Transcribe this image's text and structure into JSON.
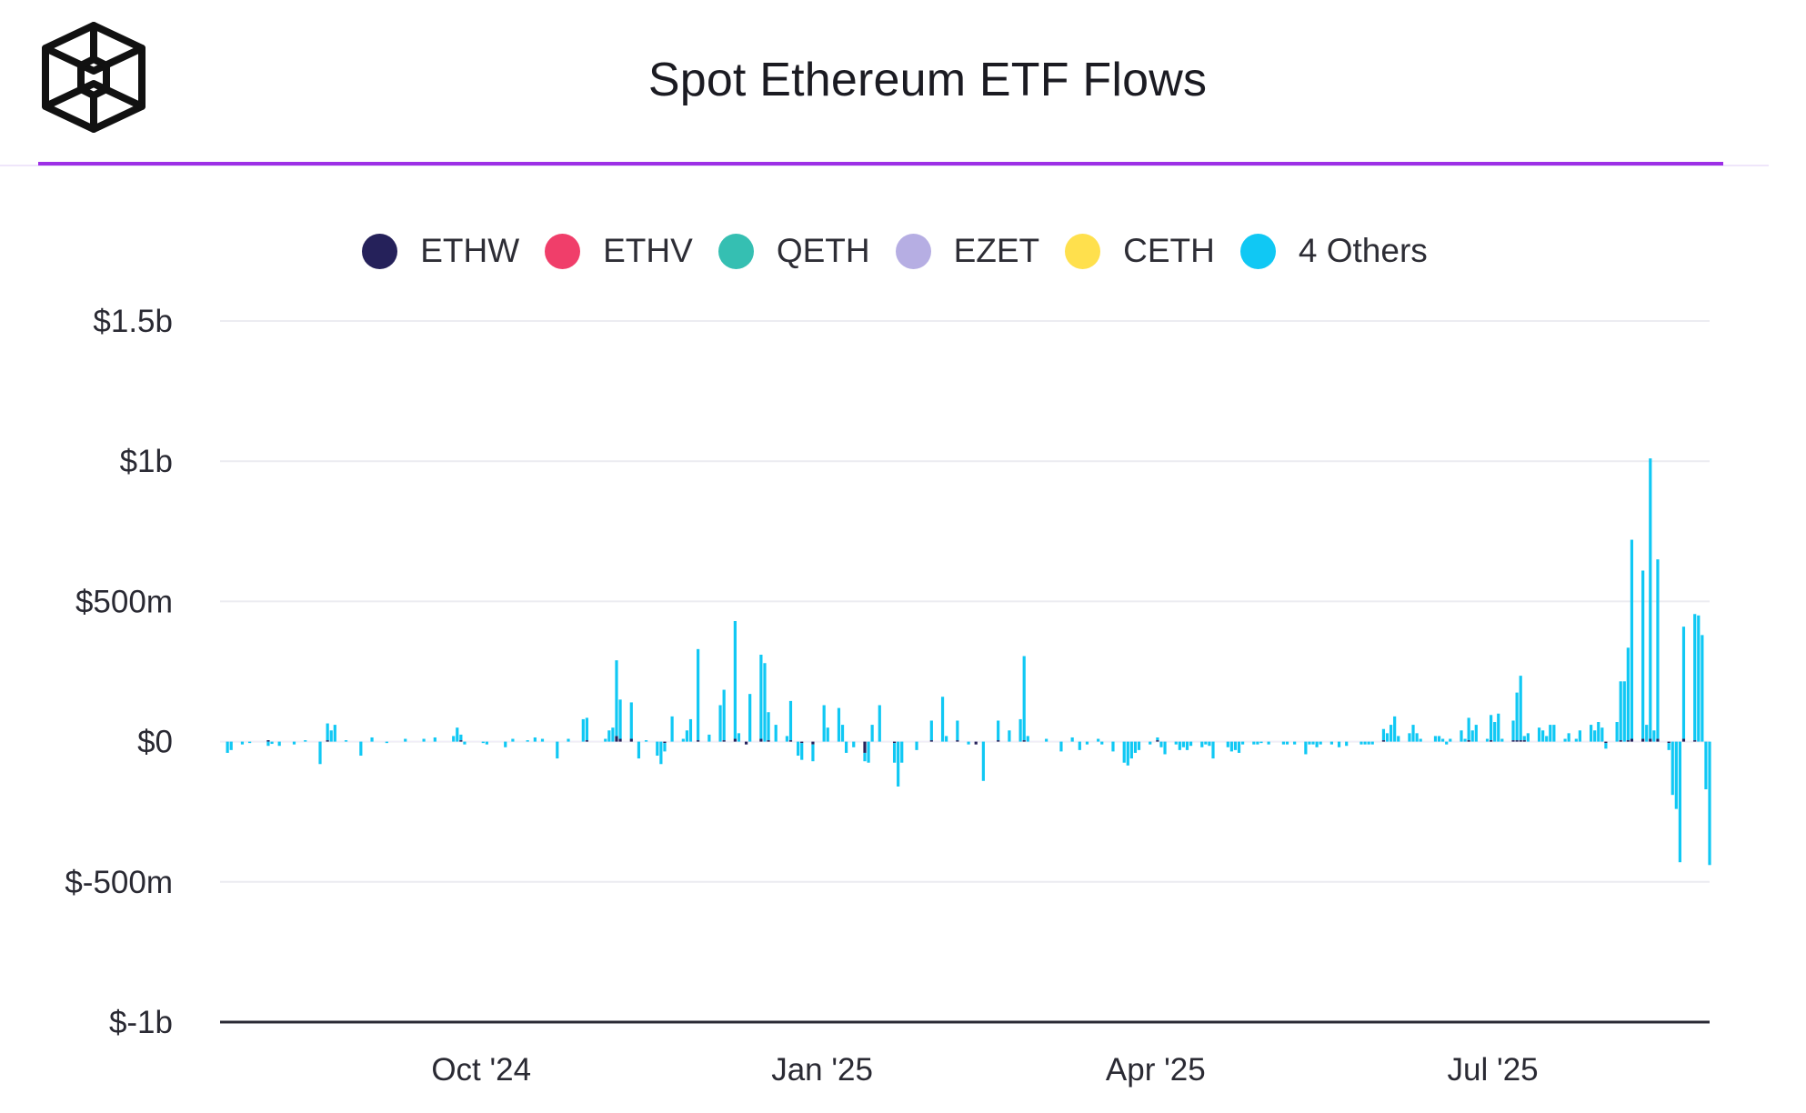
{
  "title": "Spot Ethereum ETF Flows",
  "colors": {
    "accent_rule": "#9d2fe6",
    "grid": "#ececf1",
    "axis": "#2b2b35"
  },
  "logo_icon": "cube-logo-icon",
  "chart_data": {
    "type": "bar",
    "stacked": true,
    "title": "Spot Ethereum ETF Flows",
    "xlabel": "",
    "ylabel": "",
    "ylim": [
      -1000,
      1500
    ],
    "y_unit": "millions USD",
    "y_ticks": [
      {
        "value": 1500,
        "label": "$1.5b"
      },
      {
        "value": 1000,
        "label": "$1b"
      },
      {
        "value": 500,
        "label": "$500m"
      },
      {
        "value": 0,
        "label": "$0"
      },
      {
        "value": -500,
        "label": "$-500m"
      },
      {
        "value": -1000,
        "label": "$-1b"
      }
    ],
    "x_range": [
      "2024-07-23",
      "2025-08-29"
    ],
    "x_ticks": [
      {
        "date": "2024-10-01",
        "label": "Oct '24"
      },
      {
        "date": "2025-01-01",
        "label": "Jan '25"
      },
      {
        "date": "2025-04-01",
        "label": "Apr '25"
      },
      {
        "date": "2025-07-01",
        "label": "Jul '25"
      }
    ],
    "grid": true,
    "legend_position": "top-center",
    "series": [
      {
        "name": "ETHW",
        "color": "#25215a"
      },
      {
        "name": "ETHV",
        "color": "#f03e6a"
      },
      {
        "name": "QETH",
        "color": "#35bfb2"
      },
      {
        "name": "EZET",
        "color": "#b6aee3"
      },
      {
        "name": "CETH",
        "color": "#ffe04d"
      },
      {
        "name": "4 Others",
        "color": "#10c8f4"
      }
    ],
    "points": [
      {
        "date": "2024-07-25",
        "ethw": 0,
        "others": -40
      },
      {
        "date": "2024-07-26",
        "ethw": 0,
        "others": -30
      },
      {
        "date": "2024-07-29",
        "ethw": 0,
        "others": -10
      },
      {
        "date": "2024-07-31",
        "ethw": 0,
        "others": -5
      },
      {
        "date": "2024-08-05",
        "ethw": 5,
        "others": -15
      },
      {
        "date": "2024-08-06",
        "ethw": 0,
        "others": -8
      },
      {
        "date": "2024-08-08",
        "ethw": 0,
        "others": -15
      },
      {
        "date": "2024-08-12",
        "ethw": 0,
        "others": -10
      },
      {
        "date": "2024-08-15",
        "ethw": 0,
        "others": 5
      },
      {
        "date": "2024-08-19",
        "ethw": 0,
        "others": -80
      },
      {
        "date": "2024-08-21",
        "ethw": 5,
        "others": 60
      },
      {
        "date": "2024-08-22",
        "ethw": 0,
        "others": 40
      },
      {
        "date": "2024-08-23",
        "ethw": 0,
        "others": 60
      },
      {
        "date": "2024-08-26",
        "ethw": 0,
        "others": 5
      },
      {
        "date": "2024-08-30",
        "ethw": 0,
        "others": -50
      },
      {
        "date": "2024-09-02",
        "ethw": 0,
        "others": 15
      },
      {
        "date": "2024-09-06",
        "ethw": 0,
        "others": -5
      },
      {
        "date": "2024-09-11",
        "ethw": 0,
        "others": 10
      },
      {
        "date": "2024-09-16",
        "ethw": 0,
        "others": 10
      },
      {
        "date": "2024-09-19",
        "ethw": 0,
        "others": 15
      },
      {
        "date": "2024-09-24",
        "ethw": 0,
        "others": 20
      },
      {
        "date": "2024-09-25",
        "ethw": 0,
        "others": 50
      },
      {
        "date": "2024-09-26",
        "ethw": 5,
        "others": 20
      },
      {
        "date": "2024-09-27",
        "ethw": 0,
        "others": -10
      },
      {
        "date": "2024-10-02",
        "ethw": 0,
        "others": -5
      },
      {
        "date": "2024-10-03",
        "ethw": 0,
        "others": -10
      },
      {
        "date": "2024-10-08",
        "ethw": 0,
        "others": -20
      },
      {
        "date": "2024-10-10",
        "ethw": 0,
        "others": 10
      },
      {
        "date": "2024-10-14",
        "ethw": 0,
        "others": 5
      },
      {
        "date": "2024-10-16",
        "ethw": 0,
        "others": 15
      },
      {
        "date": "2024-10-18",
        "ethw": 0,
        "others": 10
      },
      {
        "date": "2024-10-22",
        "ethw": 0,
        "others": -60
      },
      {
        "date": "2024-10-25",
        "ethw": 0,
        "others": 10
      },
      {
        "date": "2024-10-29",
        "ethw": 0,
        "others": 80
      },
      {
        "date": "2024-10-30",
        "ethw": 5,
        "others": 80
      },
      {
        "date": "2024-11-04",
        "ethw": 0,
        "others": 10
      },
      {
        "date": "2024-11-05",
        "ethw": 0,
        "others": 40
      },
      {
        "date": "2024-11-06",
        "ethw": 0,
        "others": 50
      },
      {
        "date": "2024-11-07",
        "ethw": 20,
        "others": 270
      },
      {
        "date": "2024-11-08",
        "ethw": 10,
        "others": 140
      },
      {
        "date": "2024-11-11",
        "ethw": 10,
        "others": 130
      },
      {
        "date": "2024-11-13",
        "ethw": 0,
        "others": -60
      },
      {
        "date": "2024-11-15",
        "ethw": 0,
        "others": 5
      },
      {
        "date": "2024-11-18",
        "ethw": 0,
        "others": -50
      },
      {
        "date": "2024-11-19",
        "ethw": 0,
        "others": -80
      },
      {
        "date": "2024-11-20",
        "ethw": -5,
        "others": -30
      },
      {
        "date": "2024-11-22",
        "ethw": 0,
        "others": 90
      },
      {
        "date": "2024-11-25",
        "ethw": 0,
        "others": 10
      },
      {
        "date": "2024-11-26",
        "ethw": 0,
        "others": 40
      },
      {
        "date": "2024-11-27",
        "ethw": 0,
        "others": 80
      },
      {
        "date": "2024-11-29",
        "ethw": 5,
        "others": 325
      },
      {
        "date": "2024-12-02",
        "ethw": 0,
        "others": 25
      },
      {
        "date": "2024-12-05",
        "ethw": 0,
        "others": 130
      },
      {
        "date": "2024-12-06",
        "ethw": 5,
        "others": 180
      },
      {
        "date": "2024-12-09",
        "ethw": 10,
        "others": 420
      },
      {
        "date": "2024-12-10",
        "ethw": 0,
        "others": 30
      },
      {
        "date": "2024-12-12",
        "ethw": -10,
        "others": 0
      },
      {
        "date": "2024-12-13",
        "ethw": 0,
        "others": 170
      },
      {
        "date": "2024-12-16",
        "ethw": 10,
        "others": 300
      },
      {
        "date": "2024-12-17",
        "ethw": 0,
        "others": 280
      },
      {
        "date": "2024-12-18",
        "ethw": 5,
        "others": 100
      },
      {
        "date": "2024-12-20",
        "ethw": 0,
        "others": 60
      },
      {
        "date": "2024-12-23",
        "ethw": 0,
        "others": 20
      },
      {
        "date": "2024-12-24",
        "ethw": 5,
        "others": 140
      },
      {
        "date": "2024-12-26",
        "ethw": 0,
        "others": -50
      },
      {
        "date": "2024-12-27",
        "ethw": -5,
        "others": -60
      },
      {
        "date": "2024-12-30",
        "ethw": -10,
        "others": -60
      },
      {
        "date": "2025-01-02",
        "ethw": 0,
        "others": 130
      },
      {
        "date": "2025-01-03",
        "ethw": 0,
        "others": 50
      },
      {
        "date": "2025-01-06",
        "ethw": 0,
        "others": 120
      },
      {
        "date": "2025-01-07",
        "ethw": 0,
        "others": 60
      },
      {
        "date": "2025-01-08",
        "ethw": 0,
        "others": -40
      },
      {
        "date": "2025-01-10",
        "ethw": 0,
        "others": -20
      },
      {
        "date": "2025-01-13",
        "ethw": -40,
        "others": -30
      },
      {
        "date": "2025-01-14",
        "ethw": 0,
        "others": -75
      },
      {
        "date": "2025-01-15",
        "ethw": 0,
        "others": 60
      },
      {
        "date": "2025-01-17",
        "ethw": 0,
        "others": 130
      },
      {
        "date": "2025-01-21",
        "ethw": -5,
        "others": -70
      },
      {
        "date": "2025-01-22",
        "ethw": 0,
        "others": -160
      },
      {
        "date": "2025-01-23",
        "ethw": 0,
        "others": -75
      },
      {
        "date": "2025-01-27",
        "ethw": 0,
        "others": -30
      },
      {
        "date": "2025-01-31",
        "ethw": 5,
        "others": 70
      },
      {
        "date": "2025-02-03",
        "ethw": 0,
        "others": 160
      },
      {
        "date": "2025-02-04",
        "ethw": 0,
        "others": 20
      },
      {
        "date": "2025-02-07",
        "ethw": 5,
        "others": 70
      },
      {
        "date": "2025-02-10",
        "ethw": 0,
        "others": -10
      },
      {
        "date": "2025-02-12",
        "ethw": -10,
        "others": 0
      },
      {
        "date": "2025-02-14",
        "ethw": 0,
        "others": -140
      },
      {
        "date": "2025-02-18",
        "ethw": 5,
        "others": 70
      },
      {
        "date": "2025-02-21",
        "ethw": 0,
        "others": 40
      },
      {
        "date": "2025-02-24",
        "ethw": 0,
        "others": 80
      },
      {
        "date": "2025-02-25",
        "ethw": 5,
        "others": 300
      },
      {
        "date": "2025-02-26",
        "ethw": 0,
        "others": 20
      },
      {
        "date": "2025-03-03",
        "ethw": 0,
        "others": 10
      },
      {
        "date": "2025-03-07",
        "ethw": 0,
        "others": -35
      },
      {
        "date": "2025-03-10",
        "ethw": 0,
        "others": 15
      },
      {
        "date": "2025-03-12",
        "ethw": 0,
        "others": -30
      },
      {
        "date": "2025-03-14",
        "ethw": 0,
        "others": -10
      },
      {
        "date": "2025-03-17",
        "ethw": 0,
        "others": 10
      },
      {
        "date": "2025-03-18",
        "ethw": 0,
        "others": -10
      },
      {
        "date": "2025-03-21",
        "ethw": 0,
        "others": -35
      },
      {
        "date": "2025-03-24",
        "ethw": 0,
        "others": -75
      },
      {
        "date": "2025-03-25",
        "ethw": 0,
        "others": -85
      },
      {
        "date": "2025-03-26",
        "ethw": 0,
        "others": -60
      },
      {
        "date": "2025-03-27",
        "ethw": 0,
        "others": -40
      },
      {
        "date": "2025-03-28",
        "ethw": 0,
        "others": -30
      },
      {
        "date": "2025-03-31",
        "ethw": 0,
        "others": -10
      },
      {
        "date": "2025-04-02",
        "ethw": 5,
        "others": 10
      },
      {
        "date": "2025-04-03",
        "ethw": 0,
        "others": -20
      },
      {
        "date": "2025-04-04",
        "ethw": 0,
        "others": -45
      },
      {
        "date": "2025-04-07",
        "ethw": 0,
        "others": -10
      },
      {
        "date": "2025-04-08",
        "ethw": 0,
        "others": -30
      },
      {
        "date": "2025-04-09",
        "ethw": 0,
        "others": -20
      },
      {
        "date": "2025-04-10",
        "ethw": 0,
        "others": -30
      },
      {
        "date": "2025-04-11",
        "ethw": 0,
        "others": -15
      },
      {
        "date": "2025-04-14",
        "ethw": 0,
        "others": -20
      },
      {
        "date": "2025-04-15",
        "ethw": 0,
        "others": -10
      },
      {
        "date": "2025-04-16",
        "ethw": 0,
        "others": -15
      },
      {
        "date": "2025-04-17",
        "ethw": 0,
        "others": -60
      },
      {
        "date": "2025-04-21",
        "ethw": 0,
        "others": -20
      },
      {
        "date": "2025-04-22",
        "ethw": 0,
        "others": -35
      },
      {
        "date": "2025-04-23",
        "ethw": 0,
        "others": -30
      },
      {
        "date": "2025-04-24",
        "ethw": 0,
        "others": -40
      },
      {
        "date": "2025-04-25",
        "ethw": 0,
        "others": -10
      },
      {
        "date": "2025-04-28",
        "ethw": 0,
        "others": -10
      },
      {
        "date": "2025-04-29",
        "ethw": 0,
        "others": -10
      },
      {
        "date": "2025-04-30",
        "ethw": 0,
        "others": -5
      },
      {
        "date": "2025-05-02",
        "ethw": 0,
        "others": -10
      },
      {
        "date": "2025-05-06",
        "ethw": 0,
        "others": -10
      },
      {
        "date": "2025-05-07",
        "ethw": 0,
        "others": -10
      },
      {
        "date": "2025-05-09",
        "ethw": 0,
        "others": -10
      },
      {
        "date": "2025-05-12",
        "ethw": 0,
        "others": -45
      },
      {
        "date": "2025-05-13",
        "ethw": 0,
        "others": -10
      },
      {
        "date": "2025-05-14",
        "ethw": 0,
        "others": -10
      },
      {
        "date": "2025-05-15",
        "ethw": 0,
        "others": -20
      },
      {
        "date": "2025-05-16",
        "ethw": 0,
        "others": -10
      },
      {
        "date": "2025-05-19",
        "ethw": 0,
        "others": -10
      },
      {
        "date": "2025-05-21",
        "ethw": 0,
        "others": -20
      },
      {
        "date": "2025-05-23",
        "ethw": 0,
        "others": -15
      },
      {
        "date": "2025-05-27",
        "ethw": 0,
        "others": -10
      },
      {
        "date": "2025-05-28",
        "ethw": 0,
        "others": -10
      },
      {
        "date": "2025-05-29",
        "ethw": 0,
        "others": -10
      },
      {
        "date": "2025-05-30",
        "ethw": 0,
        "others": -10
      },
      {
        "date": "2025-06-02",
        "ethw": 5,
        "others": 40
      },
      {
        "date": "2025-06-03",
        "ethw": 0,
        "others": 30
      },
      {
        "date": "2025-06-04",
        "ethw": 0,
        "others": 60
      },
      {
        "date": "2025-06-05",
        "ethw": 0,
        "others": 90
      },
      {
        "date": "2025-06-06",
        "ethw": 0,
        "others": 20
      },
      {
        "date": "2025-06-09",
        "ethw": 0,
        "others": 30
      },
      {
        "date": "2025-06-10",
        "ethw": 0,
        "others": 60
      },
      {
        "date": "2025-06-11",
        "ethw": 0,
        "others": 30
      },
      {
        "date": "2025-06-12",
        "ethw": 0,
        "others": 10
      },
      {
        "date": "2025-06-16",
        "ethw": 0,
        "others": 20
      },
      {
        "date": "2025-06-17",
        "ethw": 0,
        "others": 20
      },
      {
        "date": "2025-06-18",
        "ethw": 0,
        "others": 10
      },
      {
        "date": "2025-06-19",
        "ethw": 0,
        "others": -10
      },
      {
        "date": "2025-06-20",
        "ethw": 0,
        "others": 10
      },
      {
        "date": "2025-06-23",
        "ethw": 0,
        "others": 40
      },
      {
        "date": "2025-06-24",
        "ethw": 0,
        "others": 10
      },
      {
        "date": "2025-06-25",
        "ethw": 5,
        "others": 80
      },
      {
        "date": "2025-06-26",
        "ethw": 0,
        "others": 40
      },
      {
        "date": "2025-06-27",
        "ethw": 0,
        "others": 60
      },
      {
        "date": "2025-06-30",
        "ethw": 0,
        "others": 10
      },
      {
        "date": "2025-07-01",
        "ethw": 5,
        "others": 90
      },
      {
        "date": "2025-07-02",
        "ethw": 0,
        "others": 70
      },
      {
        "date": "2025-07-03",
        "ethw": 0,
        "others": 100
      },
      {
        "date": "2025-07-04",
        "ethw": 0,
        "others": 10
      },
      {
        "date": "2025-07-07",
        "ethw": 5,
        "others": 70
      },
      {
        "date": "2025-07-08",
        "ethw": 5,
        "others": 170
      },
      {
        "date": "2025-07-09",
        "ethw": 5,
        "others": 230
      },
      {
        "date": "2025-07-10",
        "ethw": 5,
        "others": 15
      },
      {
        "date": "2025-07-11",
        "ethw": 0,
        "others": 30
      },
      {
        "date": "2025-07-14",
        "ethw": 0,
        "others": 50
      },
      {
        "date": "2025-07-15",
        "ethw": 0,
        "others": 40
      },
      {
        "date": "2025-07-16",
        "ethw": 0,
        "others": 20
      },
      {
        "date": "2025-07-17",
        "ethw": 0,
        "others": 60
      },
      {
        "date": "2025-07-18",
        "ethw": 0,
        "others": 60
      },
      {
        "date": "2025-07-21",
        "ethw": 0,
        "others": 10
      },
      {
        "date": "2025-07-22",
        "ethw": 0,
        "others": 30
      },
      {
        "date": "2025-07-24",
        "ethw": 0,
        "others": 10
      },
      {
        "date": "2025-07-25",
        "ethw": 0,
        "others": 40
      },
      {
        "date": "2025-07-28",
        "ethw": 0,
        "others": 60
      },
      {
        "date": "2025-07-29",
        "ethw": 0,
        "others": 40
      },
      {
        "date": "2025-07-30",
        "ethw": 0,
        "others": 70
      },
      {
        "date": "2025-07-31",
        "ethw": 0,
        "others": 50
      },
      {
        "date": "2025-08-01",
        "ethw": -5,
        "others": -20
      },
      {
        "date": "2025-08-04",
        "ethw": 0,
        "others": 70
      },
      {
        "date": "2025-08-05",
        "ethw": 5,
        "others": 210
      },
      {
        "date": "2025-08-06",
        "ethw": 0,
        "others": 215
      },
      {
        "date": "2025-08-07",
        "ethw": 5,
        "others": 330
      },
      {
        "date": "2025-08-08",
        "ethw": 10,
        "others": 710
      },
      {
        "date": "2025-08-11",
        "ethw": 10,
        "others": 600
      },
      {
        "date": "2025-08-12",
        "ethw": 0,
        "others": 60
      },
      {
        "date": "2025-08-13",
        "ethw": 10,
        "others": 1000
      },
      {
        "date": "2025-08-14",
        "ethw": 0,
        "others": 40
      },
      {
        "date": "2025-08-15",
        "ethw": 10,
        "others": 640
      },
      {
        "date": "2025-08-18",
        "ethw": -5,
        "others": -25
      },
      {
        "date": "2025-08-19",
        "ethw": 0,
        "others": -190
      },
      {
        "date": "2025-08-20",
        "ethw": 0,
        "others": -240
      },
      {
        "date": "2025-08-21",
        "ethw": 0,
        "others": -430
      },
      {
        "date": "2025-08-22",
        "ethw": 10,
        "others": 400
      },
      {
        "date": "2025-08-25",
        "ethw": 5,
        "others": 450
      },
      {
        "date": "2025-08-26",
        "ethw": 0,
        "others": 450
      },
      {
        "date": "2025-08-27",
        "ethw": 0,
        "others": 380
      },
      {
        "date": "2025-08-28",
        "ethw": 0,
        "others": -170
      },
      {
        "date": "2025-08-29",
        "ethw": 0,
        "others": -440
      }
    ]
  }
}
